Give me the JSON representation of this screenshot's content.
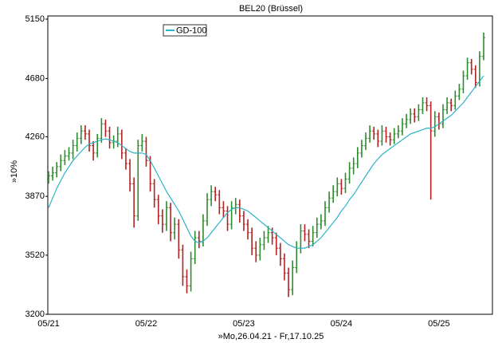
{
  "chart_data": {
    "type": "ohlc",
    "title": "BEL20 (Brüssel)",
    "x_label": "»Mo,26.04.21 - Fr,17.10.25",
    "y_label": "»10%",
    "log_scale": true,
    "grid": false,
    "up_color": "#2e8b2e",
    "down_color": "#b22222",
    "ylim": [
      3200,
      5150
    ],
    "yticks": [
      3200,
      3520,
      3870,
      4260,
      4680,
      5150
    ],
    "legend_position": "upper left",
    "categories": [
      "05/21",
      null,
      null,
      null,
      null,
      null,
      null,
      null,
      null,
      null,
      null,
      null,
      null,
      null,
      null,
      null,
      null,
      null,
      null,
      null,
      null,
      null,
      null,
      null,
      "05/22",
      null,
      null,
      null,
      null,
      null,
      null,
      null,
      null,
      null,
      null,
      null,
      null,
      null,
      null,
      null,
      null,
      null,
      null,
      null,
      null,
      null,
      null,
      null,
      "05/23",
      null,
      null,
      null,
      null,
      null,
      null,
      null,
      null,
      null,
      null,
      null,
      null,
      null,
      null,
      null,
      null,
      null,
      null,
      null,
      null,
      null,
      null,
      null,
      "05/24",
      null,
      null,
      null,
      null,
      null,
      null,
      null,
      null,
      null,
      null,
      null,
      null,
      null,
      null,
      null,
      null,
      null,
      null,
      null,
      null,
      null,
      null,
      null,
      "05/25",
      null,
      null,
      null,
      null,
      null,
      null,
      null,
      null,
      null,
      null,
      null
    ],
    "open": [
      3980,
      4000,
      4020,
      4060,
      4100,
      4130,
      4150,
      4200,
      4250,
      4300,
      4280,
      4200,
      4150,
      4250,
      4350,
      4300,
      4220,
      4230,
      4280,
      4150,
      4080,
      3950,
      3750,
      4200,
      4230,
      4100,
      3950,
      3850,
      3750,
      3700,
      3800,
      3650,
      3700,
      3550,
      3400,
      3350,
      3500,
      3620,
      3600,
      3720,
      3850,
      3900,
      3880,
      3800,
      3780,
      3700,
      3800,
      3820,
      3750,
      3700,
      3650,
      3560,
      3520,
      3580,
      3620,
      3650,
      3620,
      3560,
      3500,
      3420,
      3330,
      3450,
      3560,
      3660,
      3640,
      3600,
      3650,
      3700,
      3720,
      3800,
      3860,
      3900,
      3950,
      3920,
      3980,
      4050,
      4080,
      4150,
      4200,
      4250,
      4300,
      4280,
      4230,
      4300,
      4260,
      4240,
      4280,
      4300,
      4350,
      4380,
      4420,
      4400,
      4450,
      4500,
      4480,
      4300,
      4400,
      4350,
      4450,
      4500,
      4480,
      4550,
      4600,
      4700,
      4800,
      4750,
      4650,
      4850
    ],
    "high": [
      4030,
      4060,
      4090,
      4140,
      4170,
      4190,
      4240,
      4290,
      4340,
      4340,
      4310,
      4230,
      4280,
      4390,
      4380,
      4330,
      4270,
      4330,
      4310,
      4180,
      4110,
      3990,
      4240,
      4280,
      4260,
      4130,
      3980,
      3880,
      3790,
      3840,
      3830,
      3740,
      3730,
      3580,
      3440,
      3540,
      3660,
      3660,
      3760,
      3890,
      3940,
      3930,
      3910,
      3840,
      3810,
      3840,
      3860,
      3850,
      3780,
      3730,
      3680,
      3600,
      3620,
      3660,
      3690,
      3680,
      3650,
      3590,
      3530,
      3450,
      3490,
      3600,
      3700,
      3700,
      3670,
      3690,
      3740,
      3760,
      3840,
      3900,
      3940,
      3990,
      3980,
      4020,
      4090,
      4120,
      4190,
      4240,
      4290,
      4340,
      4330,
      4310,
      4340,
      4330,
      4290,
      4320,
      4340,
      4390,
      4420,
      4460,
      4460,
      4490,
      4540,
      4540,
      4510,
      4440,
      4430,
      4490,
      4540,
      4530,
      4590,
      4640,
      4740,
      4840,
      4830,
      4780,
      4890,
      5040
    ],
    "low": [
      3950,
      3970,
      3990,
      4030,
      4070,
      4100,
      4110,
      4160,
      4210,
      4240,
      4160,
      4100,
      4120,
      4220,
      4260,
      4180,
      4180,
      4190,
      4110,
      4040,
      3900,
      3680,
      3720,
      4160,
      4060,
      3900,
      3800,
      3700,
      3650,
      3660,
      3600,
      3610,
      3500,
      3350,
      3310,
      3320,
      3470,
      3560,
      3570,
      3690,
      3810,
      3840,
      3760,
      3740,
      3660,
      3670,
      3760,
      3710,
      3660,
      3610,
      3520,
      3480,
      3490,
      3550,
      3590,
      3580,
      3520,
      3460,
      3380,
      3290,
      3300,
      3420,
      3530,
      3600,
      3560,
      3570,
      3620,
      3670,
      3690,
      3770,
      3830,
      3870,
      3880,
      3890,
      3950,
      4010,
      4050,
      4120,
      4170,
      4220,
      4240,
      4190,
      4200,
      4220,
      4200,
      4210,
      4250,
      4270,
      4320,
      4350,
      4360,
      4370,
      4420,
      4440,
      3850,
      4260,
      4310,
      4320,
      4420,
      4440,
      4450,
      4520,
      4570,
      4670,
      4710,
      4610,
      4620,
      4820
    ],
    "close": [
      4000,
      4020,
      4060,
      4100,
      4130,
      4150,
      4200,
      4250,
      4300,
      4280,
      4200,
      4150,
      4250,
      4350,
      4300,
      4220,
      4230,
      4280,
      4150,
      4080,
      3950,
      3750,
      4200,
      4230,
      4100,
      3950,
      3850,
      3750,
      3700,
      3800,
      3650,
      3700,
      3550,
      3400,
      3350,
      3500,
      3620,
      3600,
      3720,
      3850,
      3900,
      3880,
      3800,
      3780,
      3700,
      3800,
      3820,
      3750,
      3700,
      3650,
      3560,
      3520,
      3580,
      3620,
      3650,
      3620,
      3560,
      3500,
      3420,
      3330,
      3450,
      3560,
      3660,
      3640,
      3600,
      3650,
      3700,
      3720,
      3800,
      3860,
      3900,
      3950,
      3920,
      3980,
      4050,
      4080,
      4150,
      4200,
      4250,
      4300,
      4280,
      4230,
      4300,
      4260,
      4240,
      4280,
      4300,
      4350,
      4380,
      4420,
      4400,
      4450,
      4500,
      4480,
      4300,
      4400,
      4350,
      4450,
      4500,
      4480,
      4550,
      4600,
      4700,
      4800,
      4750,
      4650,
      4850,
      5000
    ],
    "series": [
      {
        "name": "GD-100",
        "color": "#2bb3c8",
        "values": [
          3800,
          3860,
          3920,
          3970,
          4020,
          4060,
          4100,
          4130,
          4160,
          4190,
          4210,
          4220,
          4230,
          4240,
          4245,
          4240,
          4230,
          4220,
          4200,
          4180,
          4160,
          4150,
          4150,
          4150,
          4140,
          4100,
          4050,
          4000,
          3950,
          3900,
          3860,
          3820,
          3780,
          3730,
          3680,
          3630,
          3600,
          3590,
          3600,
          3620,
          3650,
          3680,
          3710,
          3740,
          3770,
          3790,
          3800,
          3800,
          3790,
          3780,
          3760,
          3740,
          3720,
          3700,
          3680,
          3660,
          3640,
          3620,
          3600,
          3580,
          3570,
          3560,
          3560,
          3560,
          3570,
          3580,
          3600,
          3620,
          3650,
          3680,
          3710,
          3740,
          3780,
          3810,
          3850,
          3880,
          3920,
          3960,
          4000,
          4040,
          4080,
          4110,
          4140,
          4160,
          4180,
          4200,
          4220,
          4240,
          4260,
          4280,
          4290,
          4300,
          4310,
          4320,
          4320,
          4330,
          4350,
          4370,
          4390,
          4410,
          4440,
          4470,
          4500,
          4540,
          4580,
          4620,
          4660,
          4700
        ]
      }
    ]
  }
}
